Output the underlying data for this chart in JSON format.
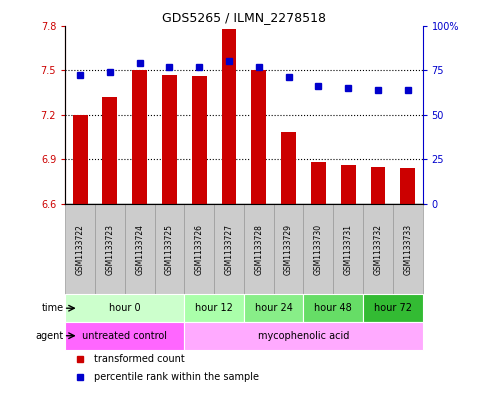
{
  "title": "GDS5265 / ILMN_2278518",
  "samples": [
    "GSM1133722",
    "GSM1133723",
    "GSM1133724",
    "GSM1133725",
    "GSM1133726",
    "GSM1133727",
    "GSM1133728",
    "GSM1133729",
    "GSM1133730",
    "GSM1133731",
    "GSM1133732",
    "GSM1133733"
  ],
  "transformed_count": [
    7.2,
    7.32,
    7.5,
    7.47,
    7.46,
    7.78,
    7.5,
    7.08,
    6.88,
    6.86,
    6.85,
    6.84
  ],
  "percentile_rank": [
    72,
    74,
    79,
    77,
    77,
    80,
    77,
    71,
    66,
    65,
    64,
    64
  ],
  "ylim_left": [
    6.6,
    7.8
  ],
  "ylim_right": [
    0,
    100
  ],
  "yticks_left": [
    6.6,
    6.9,
    7.2,
    7.5,
    7.8
  ],
  "yticks_right": [
    0,
    25,
    50,
    75,
    100
  ],
  "ytick_labels_left": [
    "6.6",
    "6.9",
    "7.2",
    "7.5",
    "7.8"
  ],
  "ytick_labels_right": [
    "0",
    "25",
    "50",
    "75",
    "100%"
  ],
  "bar_color": "#cc0000",
  "dot_color": "#0000cc",
  "bar_width": 0.5,
  "time_groups": [
    {
      "label": "hour 0",
      "start": 0,
      "end": 3,
      "color": "#ccffcc"
    },
    {
      "label": "hour 12",
      "start": 4,
      "end": 5,
      "color": "#aaffaa"
    },
    {
      "label": "hour 24",
      "start": 6,
      "end": 7,
      "color": "#88ee88"
    },
    {
      "label": "hour 48",
      "start": 8,
      "end": 9,
      "color": "#66dd66"
    },
    {
      "label": "hour 72",
      "start": 10,
      "end": 11,
      "color": "#33bb33"
    }
  ],
  "agent_groups": [
    {
      "label": "untreated control",
      "start": 0,
      "end": 3,
      "color": "#ff66ff"
    },
    {
      "label": "mycophenolic acid",
      "start": 4,
      "end": 11,
      "color": "#ffaaff"
    }
  ],
  "legend_bar_label": "transformed count",
  "legend_dot_label": "percentile rank within the sample",
  "time_label": "time",
  "agent_label": "agent",
  "background_color": "#ffffff",
  "sample_box_color": "#cccccc",
  "sample_box_edge": "#999999"
}
